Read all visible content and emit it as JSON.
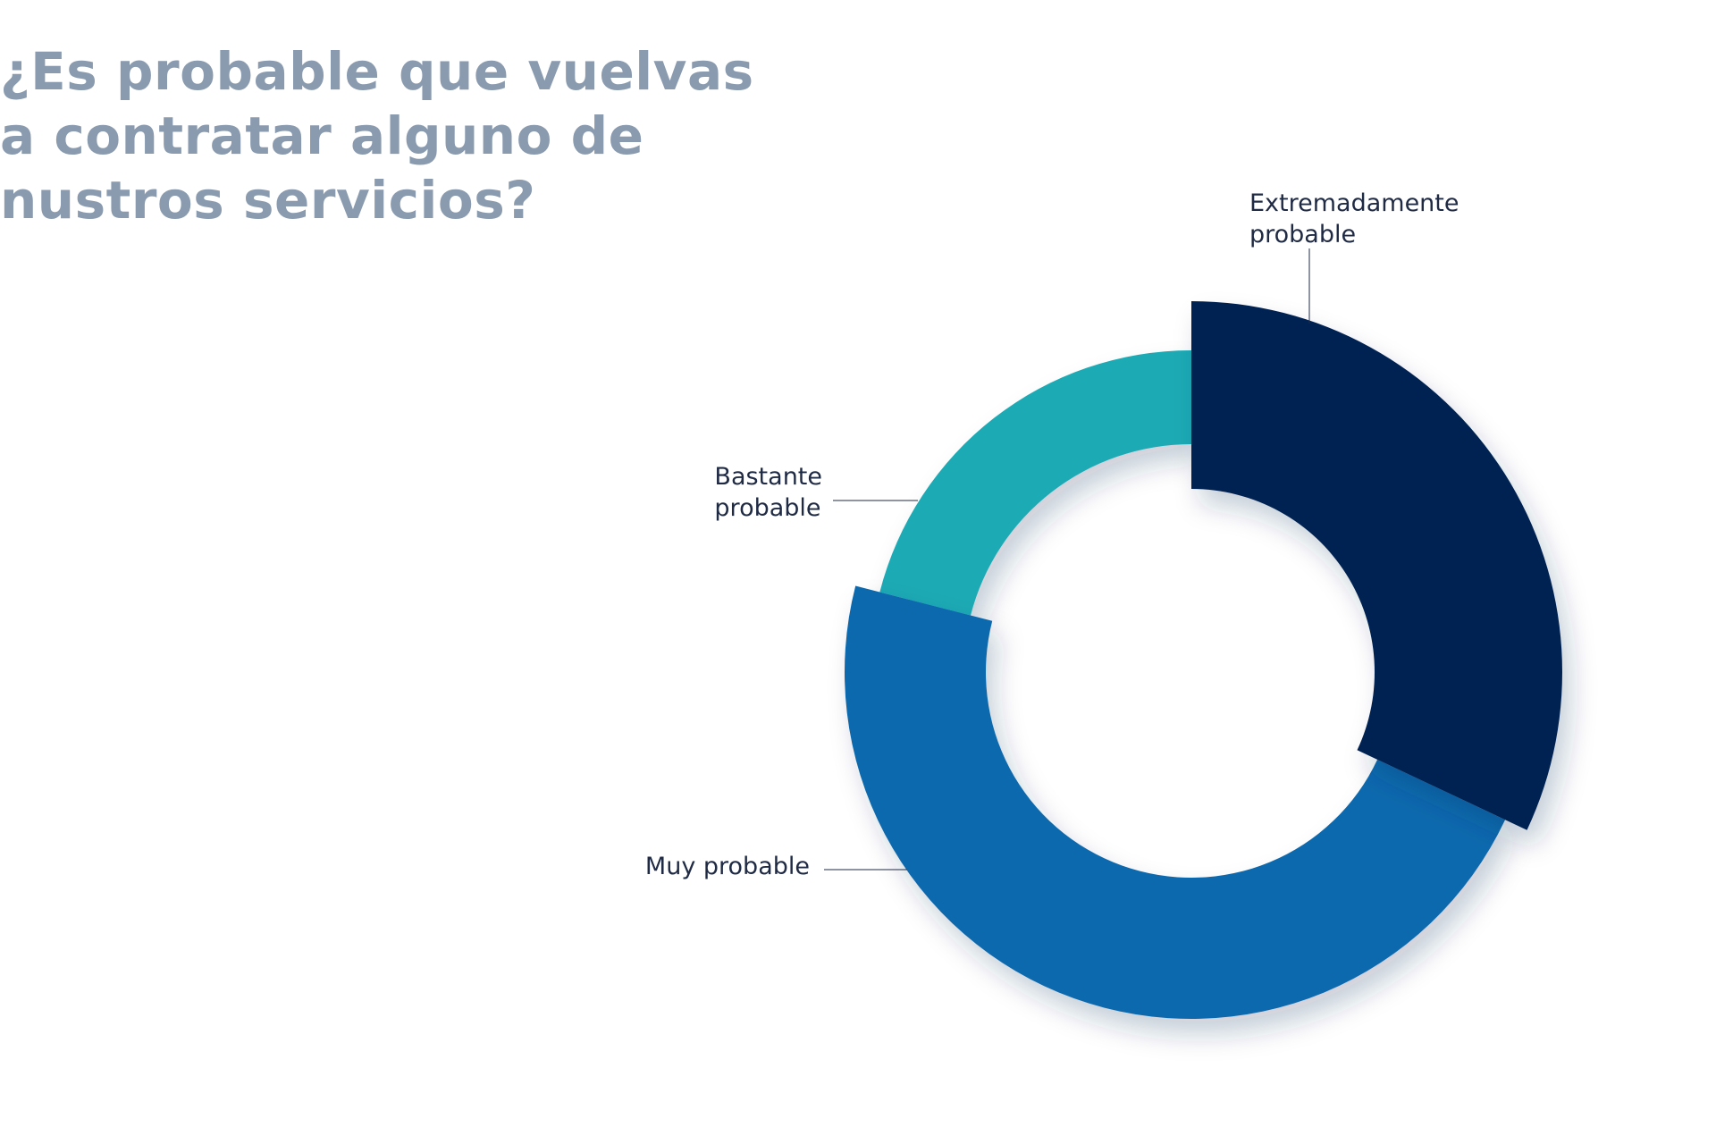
{
  "chart_data": {
    "type": "pie",
    "variant": "donut",
    "title": "¿Es probable que vuelvas\na contratar alguno de\nnustros servicios?",
    "categories": [
      "Extremadamente probable",
      "Muy probable",
      "Bastante probable"
    ],
    "values": [
      32,
      47,
      21
    ],
    "unit": "%",
    "colors": [
      "#002452",
      "#0f69ae",
      "#1eaab5"
    ],
    "title_color": "#8a9bb0",
    "label_color": "#1f2a44",
    "legend": "none",
    "grid": false,
    "labels": [
      {
        "lines": [
          "Extremadamente",
          "probable"
        ]
      },
      {
        "lines": [
          "Muy probable"
        ]
      },
      {
        "lines": [
          "Bastante",
          "probable"
        ]
      }
    ]
  }
}
